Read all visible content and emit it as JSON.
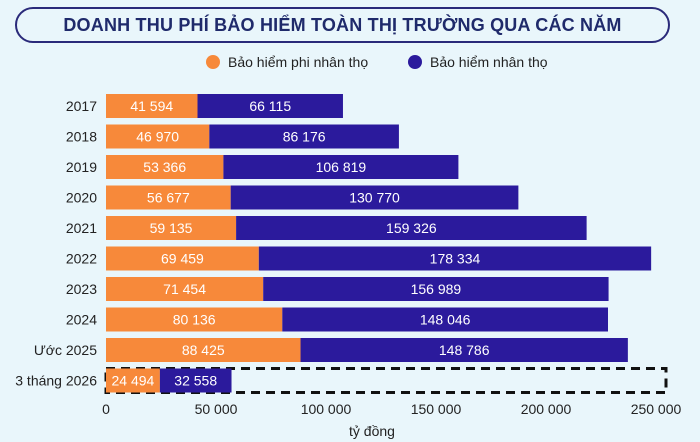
{
  "chart_data": {
    "type": "bar",
    "orientation": "horizontal",
    "stacked": true,
    "title": "DOANH THU PHÍ BẢO HIỂM TOÀN THỊ TRƯỜNG QUA CÁC NĂM",
    "xlabel": "tỷ đồng",
    "ylabel": "",
    "xlim": [
      0,
      250000
    ],
    "x_ticks": [
      "0",
      "50 000",
      "100 000",
      "150 000",
      "200 000",
      "250 000"
    ],
    "x_tick_values": [
      0,
      50000,
      100000,
      150000,
      200000,
      250000
    ],
    "legend_position": "top",
    "categories": [
      "2017",
      "2018",
      "2019",
      "2020",
      "2021",
      "2022",
      "2023",
      "2024",
      "Ước 2025",
      "3 tháng 2026"
    ],
    "series": [
      {
        "name": "Bảo hiểm phi nhân thọ",
        "color": "#f7893a",
        "values": [
          41594,
          46970,
          53366,
          56677,
          59135,
          69459,
          71454,
          80136,
          88425,
          24494
        ],
        "labels": [
          "41 594",
          "46 970",
          "53 366",
          "56 677",
          "59 135",
          "69 459",
          "71 454",
          "80 136",
          "88 425",
          "24 494"
        ]
      },
      {
        "name": "Bảo hiểm nhân thọ",
        "color": "#2b1a9c",
        "values": [
          66115,
          86176,
          106819,
          130770,
          159326,
          178334,
          156989,
          148046,
          148786,
          32558
        ],
        "labels": [
          "66 115",
          "86 176",
          "106 819",
          "130 770",
          "159 326",
          "178 334",
          "156 989",
          "148 046",
          "148 786",
          "32 558"
        ]
      }
    ],
    "projection_box": {
      "category": "3 tháng 2026",
      "to_value": 250000,
      "style": "dashed"
    }
  }
}
